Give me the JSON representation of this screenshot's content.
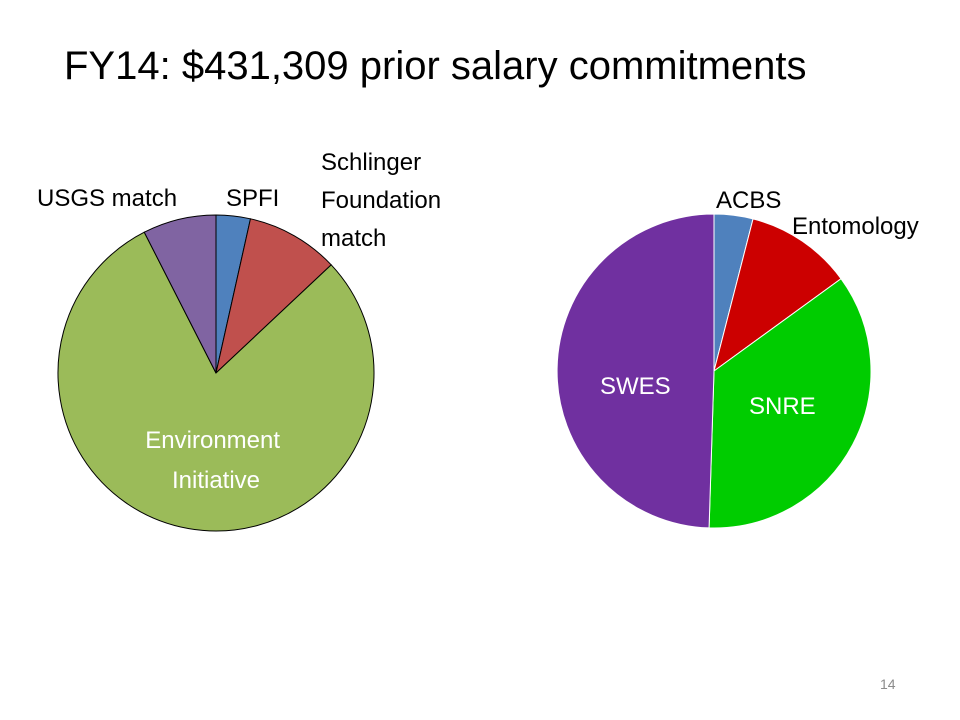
{
  "slide": {
    "title": "FY14: $431,309 prior salary commitments",
    "page_number": "14"
  },
  "chart_data": [
    {
      "type": "pie",
      "title": "",
      "slices": [
        {
          "label": "SPFI",
          "value": 3.5,
          "color": "#4F81BD"
        },
        {
          "label": "Schlinger Foundation match",
          "value": 9.5,
          "color": "#C0504D"
        },
        {
          "label": "Environment Initiative",
          "value": 79.5,
          "color": "#9BBB59"
        },
        {
          "label": "USGS match",
          "value": 7.5,
          "color": "#8064A2"
        }
      ],
      "legend": "none"
    },
    {
      "type": "pie",
      "title": "",
      "slices": [
        {
          "label": "ACBS",
          "value": 4,
          "color": "#4F81BD"
        },
        {
          "label": "Entomology",
          "value": 11,
          "color": "#CC0000"
        },
        {
          "label": "SNRE",
          "value": 35.5,
          "color": "#00CC00"
        },
        {
          "label": "SWES",
          "value": 49.5,
          "color": "#7030A0"
        }
      ],
      "legend": "none"
    }
  ]
}
